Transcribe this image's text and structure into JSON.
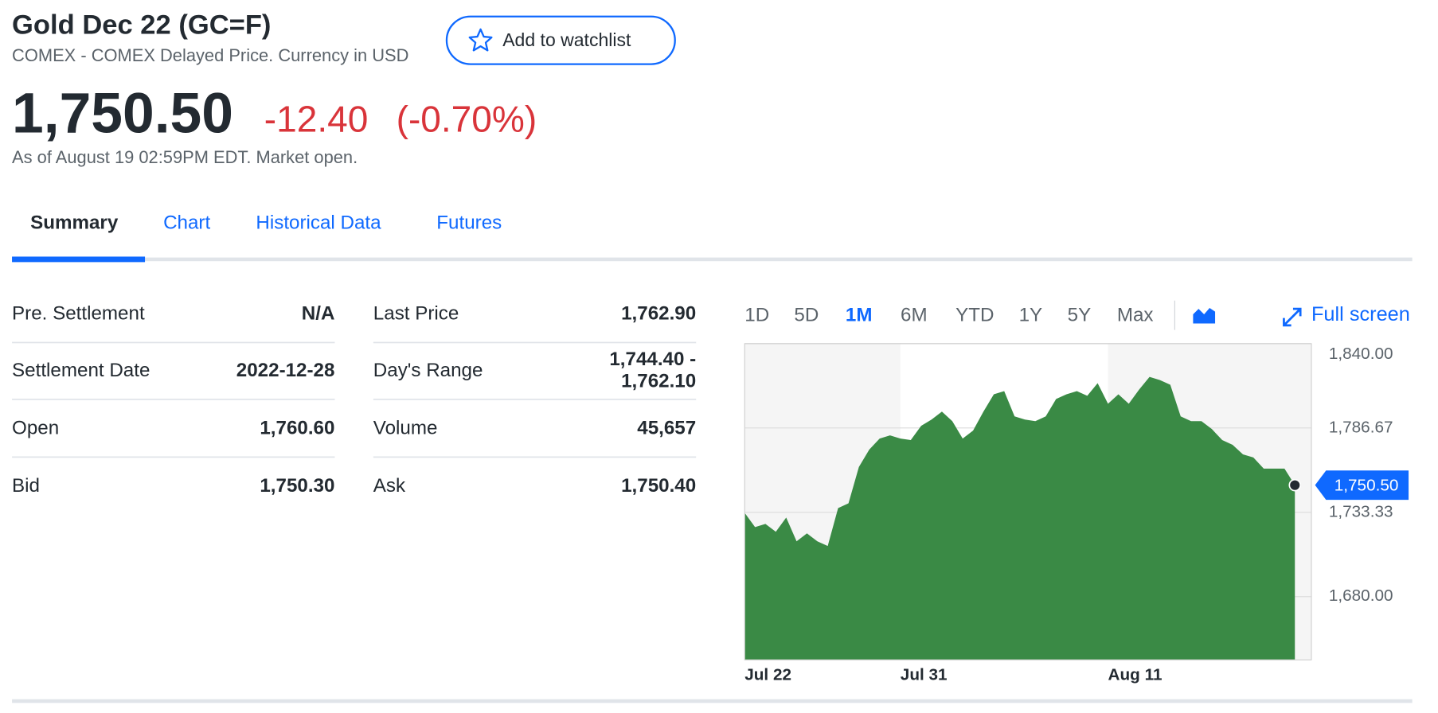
{
  "header": {
    "title": "Gold Dec 22 (GC=F)",
    "subtitle": "COMEX - COMEX Delayed Price. Currency in USD",
    "watchlist_button": "Add to watchlist",
    "price": "1,750.50",
    "change": "-12.40",
    "change_percent": "(-0.70%)",
    "as_of": "As of August 19 02:59PM EDT. Market open."
  },
  "tabs": [
    "Summary",
    "Chart",
    "Historical Data",
    "Futures"
  ],
  "active_tab": 0,
  "table": {
    "left": [
      [
        "Pre. Settlement",
        "N/A"
      ],
      [
        "Settlement Date",
        "2022-12-28"
      ],
      [
        "Open",
        "1,760.60"
      ],
      [
        "Bid",
        "1,750.30"
      ]
    ],
    "right": [
      [
        "Last Price",
        [
          "1,762.90"
        ]
      ],
      [
        "Day's Range",
        [
          "1,744.40 -",
          "1,762.10"
        ]
      ],
      [
        "Volume",
        [
          "45,657"
        ]
      ],
      [
        "Ask",
        [
          "1,750.40"
        ]
      ]
    ]
  },
  "ranges": [
    "1D",
    "5D",
    "1M",
    "6M",
    "YTD",
    "1Y",
    "5Y",
    "Max"
  ],
  "active_range": 2,
  "full_screen": "Full screen",
  "chart_data": {
    "type": "area",
    "color": "#3a8a45",
    "categories": [
      "Jul 22",
      null,
      null,
      null,
      null,
      null,
      null,
      null,
      null,
      null,
      null,
      null,
      null,
      null,
      null,
      "Jul 31",
      null,
      null,
      null,
      null,
      null,
      null,
      null,
      null,
      null,
      null,
      null,
      null,
      null,
      null,
      null,
      null,
      null,
      null,
      null,
      "Aug 11",
      null,
      null,
      null,
      null,
      null,
      null,
      null,
      null,
      null,
      null,
      null,
      null,
      null,
      null,
      null,
      null,
      null,
      null
    ],
    "values": [
      1733,
      1724,
      1726,
      1721,
      1730,
      1715,
      1720,
      1715,
      1712,
      1736,
      1739,
      1762,
      1773,
      1780,
      1782,
      1780,
      1779,
      1788,
      1792,
      1797,
      1791,
      1780,
      1785,
      1797,
      1808,
      1810,
      1794,
      1792,
      1791,
      1794,
      1805,
      1808,
      1810,
      1807,
      1815,
      1802,
      1808,
      1802,
      1811,
      1819,
      1817,
      1814,
      1794,
      1791,
      1791,
      1786,
      1779,
      1776,
      1770,
      1768,
      1761,
      1761,
      1761,
      1750.5
    ],
    "ylim": [
      1640,
      1840
    ],
    "yticks": [
      {
        "value": 1840,
        "label": "1,840.00"
      },
      {
        "value": 1786.67,
        "label": "1,786.67"
      },
      {
        "value": 1733.33,
        "label": "1,733.33"
      },
      {
        "value": 1680,
        "label": "1,680.00"
      }
    ],
    "current_value": 1750.5,
    "current_label": "1,750.50",
    "grid": true
  }
}
